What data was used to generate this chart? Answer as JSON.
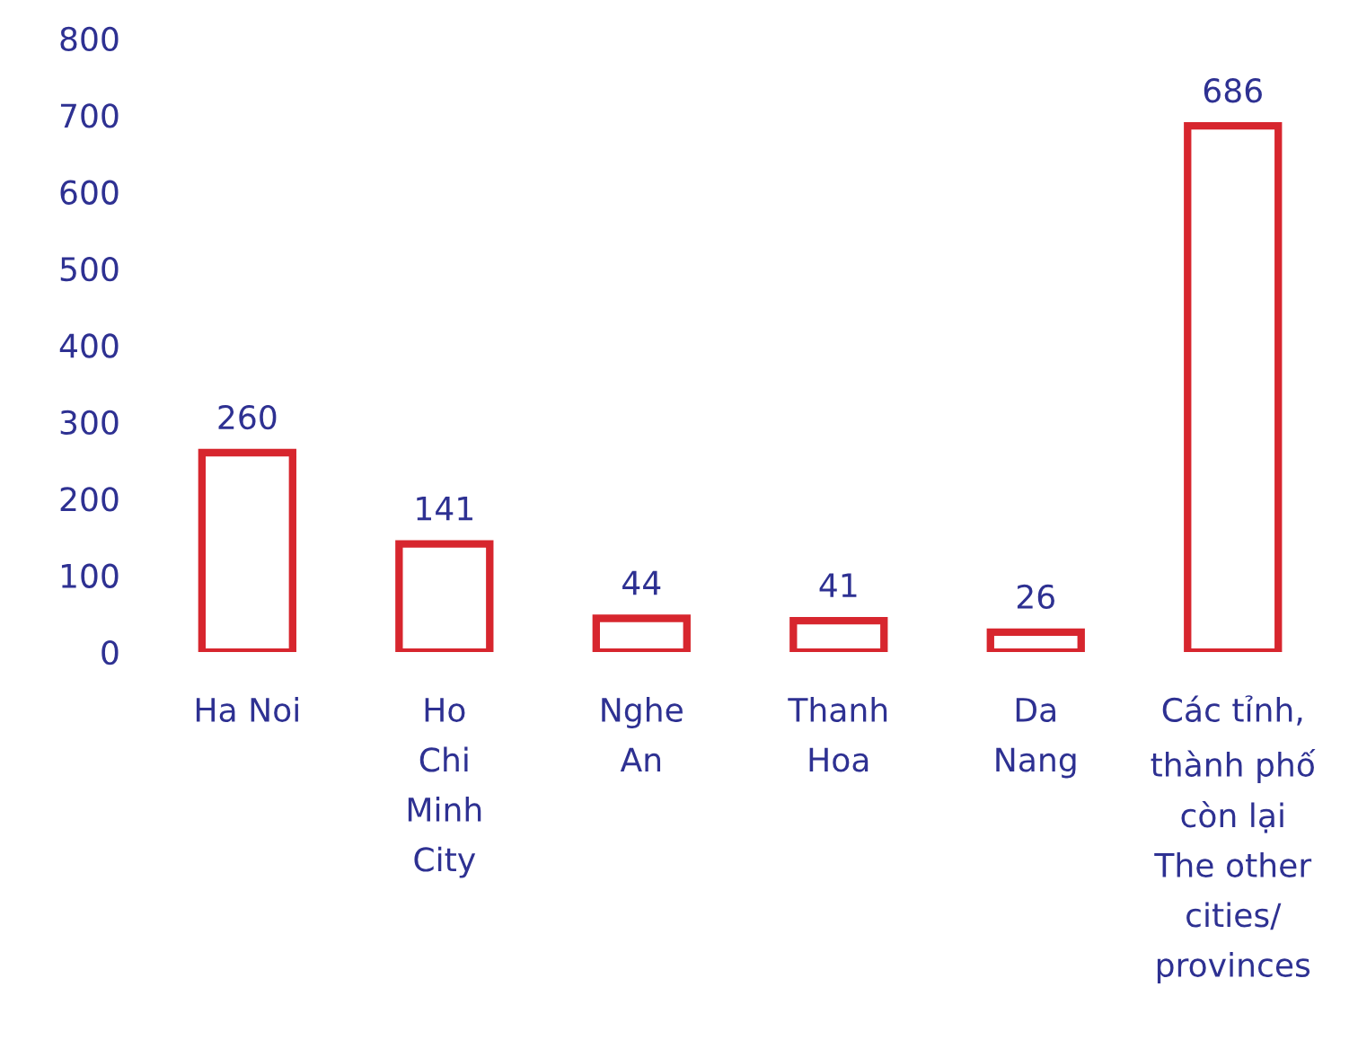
{
  "chart_data": {
    "type": "bar",
    "categories": [
      "Ha Noi",
      "Ho\nChi\nMinh\nCity",
      "Nghe\nAn",
      "Thanh\nHoa",
      "Da\nNang",
      "Các tỉnh,\nthành phố\ncòn lại\nThe other\ncities/\nprovinces"
    ],
    "values": [
      260,
      141,
      44,
      41,
      26,
      686
    ],
    "color": "#d7262e",
    "ylim": [
      0,
      800
    ],
    "yticks": [
      0,
      100,
      200,
      300,
      400,
      500,
      600,
      700,
      800
    ],
    "data_labels": true,
    "grid": false,
    "legend": false
  }
}
